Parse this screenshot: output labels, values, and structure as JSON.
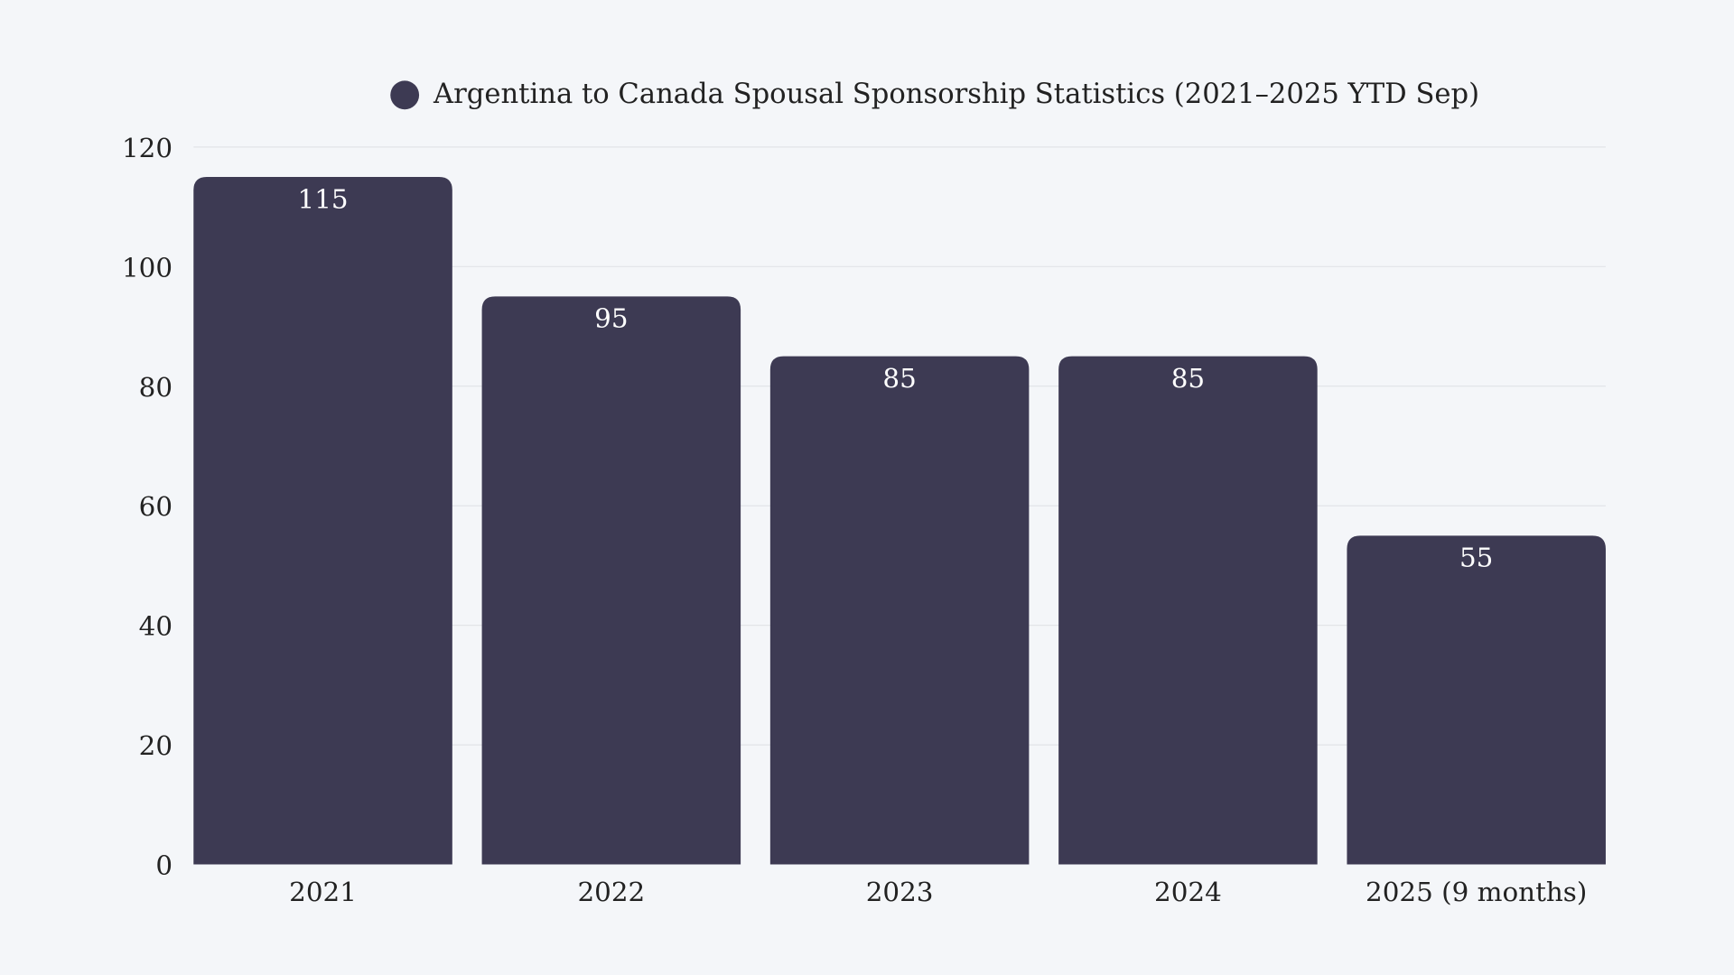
{
  "chart_data": {
    "type": "bar",
    "title": "",
    "legend": {
      "label": "Argentina to Canada Spousal Sponsorship Statistics (2021–2025 YTD Sep)",
      "position": "top"
    },
    "categories": [
      "2021",
      "2022",
      "2023",
      "2024",
      "2025 (9 months)"
    ],
    "series": [
      {
        "name": "Argentina to Canada Spousal Sponsorship Statistics (2021–2025 YTD Sep)",
        "values": [
          115,
          95,
          85,
          85,
          55
        ]
      }
    ],
    "data_labels": [
      "115",
      "95",
      "85",
      "85",
      "55"
    ],
    "xlabel": "",
    "ylabel": "",
    "ylim": [
      0,
      120
    ],
    "yticks": [
      "0",
      "20",
      "40",
      "60",
      "80",
      "100",
      "120"
    ],
    "grid": true,
    "colors": {
      "bar": "#3d3a53",
      "background": "#f4f6f9",
      "grid": "#e2e4e8",
      "text": "#222222"
    }
  }
}
